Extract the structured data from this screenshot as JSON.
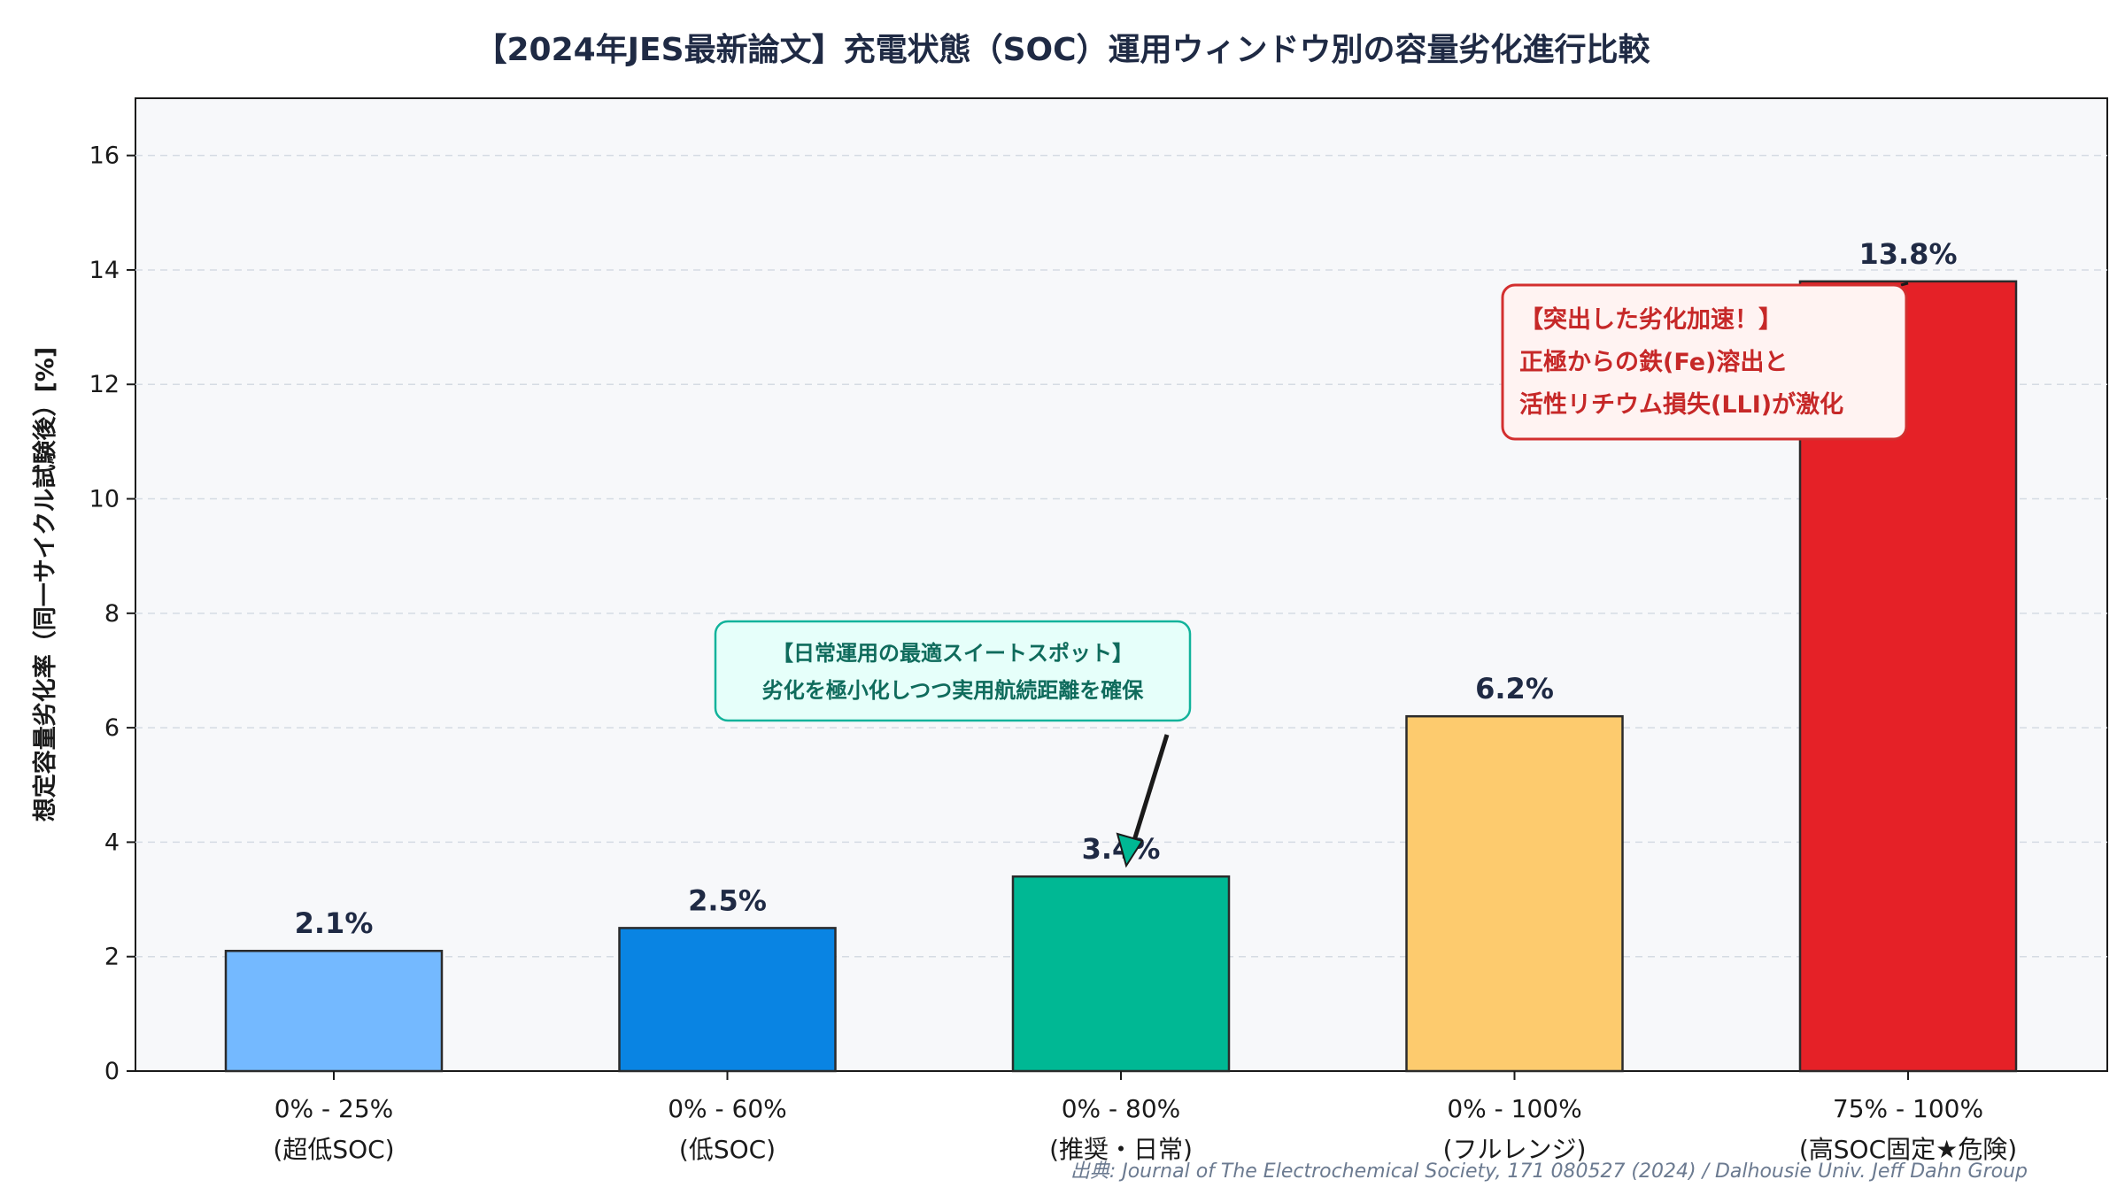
{
  "chart_data": {
    "type": "bar",
    "title": "【2024年JES最新論文】充電状態（SOC）運用ウィンドウ別の容量劣化進行比較",
    "ylabel": "想定容量劣化率（同一サイクル試験後）[%]",
    "xlabel": "",
    "ylim": [
      0,
      17
    ],
    "yticks": [
      0,
      2,
      4,
      6,
      8,
      10,
      12,
      14,
      16
    ],
    "grid": "y-dashed",
    "categories": [
      [
        "0% - 25%",
        "(超低SOC)"
      ],
      [
        "0% - 60%",
        "(低SOC)"
      ],
      [
        "0% - 80%",
        "(推奨・日常)"
      ],
      [
        "0% - 100%",
        "(フルレンジ)"
      ],
      [
        "75% - 100%",
        "(高SOC固定★危険)"
      ]
    ],
    "values": [
      2.1,
      2.5,
      3.4,
      6.2,
      13.8
    ],
    "value_labels": [
      "2.1%",
      "2.5%",
      "3.4%",
      "6.2%",
      "13.8%"
    ],
    "colors": [
      "#74b9ff",
      "#0984e3",
      "#00b894",
      "#fdcb6e",
      "#e52127"
    ],
    "annotations": [
      {
        "target_index": 2,
        "lines": [
          "【日常運用の最適スイートスポット】",
          "劣化を極小化しつつ実用航続距離を確保"
        ],
        "style": "green"
      },
      {
        "target_index": 4,
        "lines": [
          "【突出した劣化加速！】",
          "正極からの鉄(Fe)溶出と",
          "活性リチウム損失(LLI)が激化"
        ],
        "style": "red"
      }
    ],
    "source": "出典: Journal of The Electrochemical Society, 171 080527 (2024) / Dalhousie Univ. Jeff Dahn Group"
  }
}
